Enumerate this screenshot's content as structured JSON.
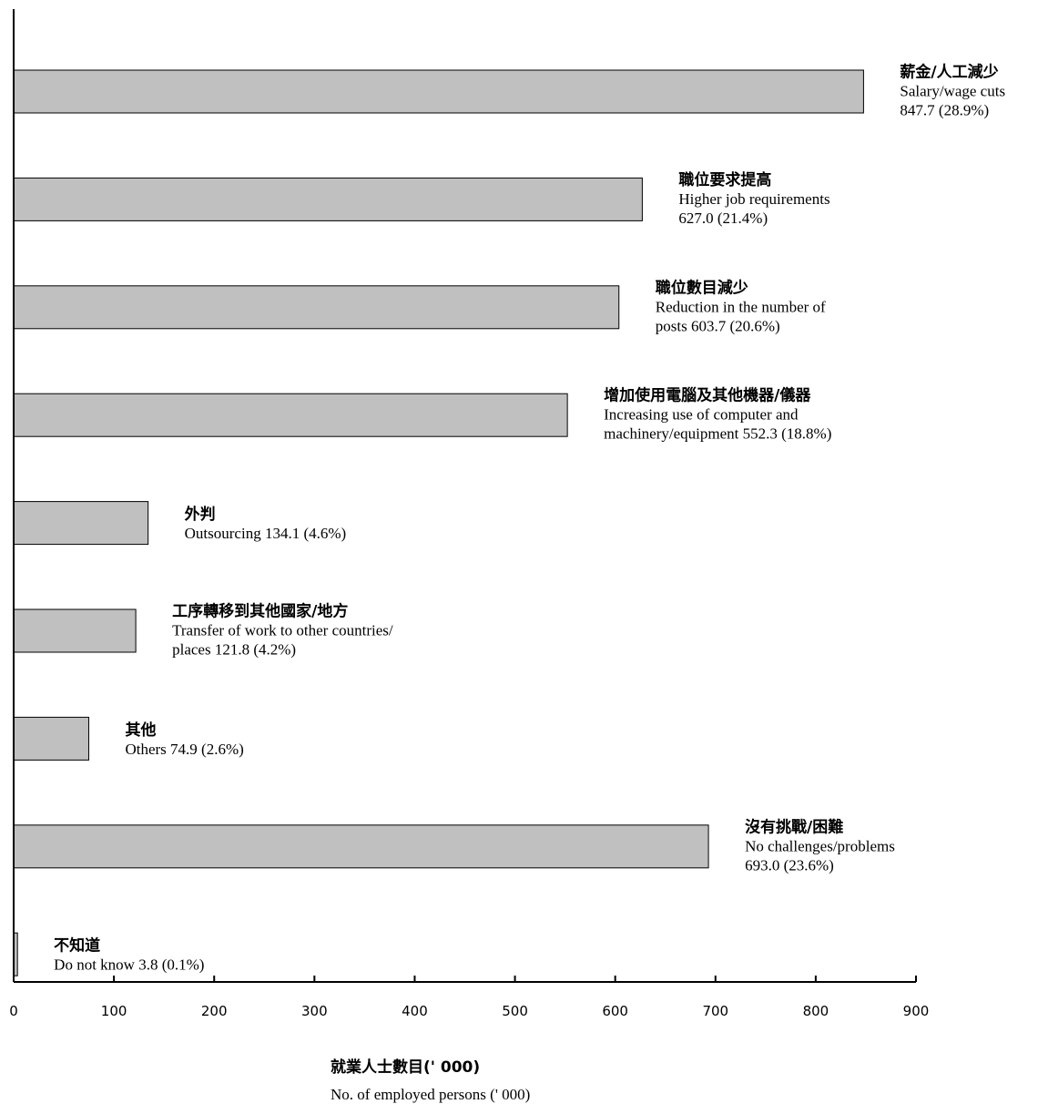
{
  "chart_data": {
    "type": "bar",
    "orientation": "horizontal",
    "xlim": [
      0,
      900
    ],
    "xticks": [
      0,
      100,
      200,
      300,
      400,
      500,
      600,
      700,
      800,
      900
    ],
    "xlabel_zh": "就業人士數目(' 000)",
    "xlabel_en": "No. of employed persons (' 000)",
    "bar_color": "#c0c0c0",
    "bars": [
      {
        "value": 847.7,
        "zh": "薪金/人工減少",
        "en_lines": [
          "Salary/wage cuts",
          "847.7 (28.9%)"
        ]
      },
      {
        "value": 627.0,
        "zh": "職位要求提高",
        "en_lines": [
          "Higher job requirements",
          "627.0 (21.4%)"
        ]
      },
      {
        "value": 603.7,
        "zh": "職位數目減少",
        "en_lines": [
          "Reduction in the number of",
          "posts    603.7 (20.6%)"
        ]
      },
      {
        "value": 552.3,
        "zh": "增加使用電腦及其他機器/儀器",
        "en_lines": [
          "Increasing use of computer and",
          "machinery/equipment    552.3 (18.8%)"
        ]
      },
      {
        "value": 134.1,
        "zh": "外判",
        "en_lines": [
          "Outsourcing    134.1 (4.6%)"
        ]
      },
      {
        "value": 121.8,
        "zh": "工序轉移到其他國家/地方",
        "en_lines": [
          "Transfer of work to other countries/",
          "places    121.8 (4.2%)"
        ]
      },
      {
        "value": 74.9,
        "zh": "其他",
        "en_lines": [
          "Others    74.9 (2.6%)"
        ]
      },
      {
        "value": 693.0,
        "zh": "沒有挑戰/困難",
        "en_lines": [
          "No challenges/problems",
          "693.0 (23.6%)"
        ]
      },
      {
        "value": 3.8,
        "zh": "不知道",
        "en_lines": [
          "Do not know    3.8 (0.1%)"
        ]
      }
    ]
  }
}
